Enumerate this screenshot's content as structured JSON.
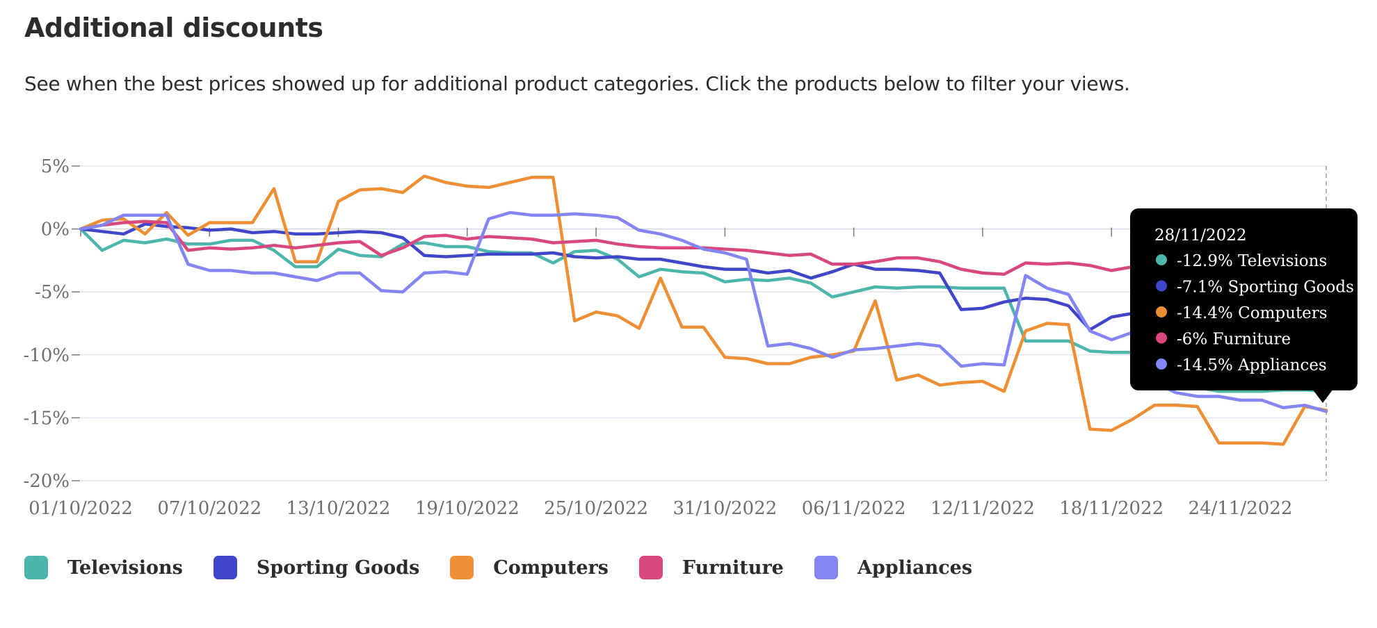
{
  "header": {
    "title": "Additional discounts",
    "subtitle": "See when the best prices showed up for additional product categories. Click the products below to filter your views."
  },
  "tooltip": {
    "date": "28/11/2022",
    "items": [
      {
        "text": "-12.9% Televisions",
        "color": "#4db6ac"
      },
      {
        "text": "-7.1% Sporting Goods",
        "color": "#4046c9"
      },
      {
        "text": "-14.4% Computers",
        "color": "#ef8f35"
      },
      {
        "text": "-6% Furniture",
        "color": "#d8487f"
      },
      {
        "text": "-14.5% Appliances",
        "color": "#8285f2"
      }
    ]
  },
  "chart_data": {
    "type": "line",
    "x": [
      "01/10/2022",
      "02/10/2022",
      "03/10/2022",
      "04/10/2022",
      "05/10/2022",
      "06/10/2022",
      "07/10/2022",
      "08/10/2022",
      "09/10/2022",
      "10/10/2022",
      "11/10/2022",
      "12/10/2022",
      "13/10/2022",
      "14/10/2022",
      "15/10/2022",
      "16/10/2022",
      "17/10/2022",
      "18/10/2022",
      "19/10/2022",
      "20/10/2022",
      "21/10/2022",
      "22/10/2022",
      "23/10/2022",
      "24/10/2022",
      "25/10/2022",
      "26/10/2022",
      "27/10/2022",
      "28/10/2022",
      "29/10/2022",
      "30/10/2022",
      "31/10/2022",
      "01/11/2022",
      "02/11/2022",
      "03/11/2022",
      "04/11/2022",
      "05/11/2022",
      "06/11/2022",
      "07/11/2022",
      "08/11/2022",
      "09/11/2022",
      "10/11/2022",
      "11/11/2022",
      "12/11/2022",
      "13/11/2022",
      "14/11/2022",
      "15/11/2022",
      "16/11/2022",
      "17/11/2022",
      "18/11/2022",
      "19/11/2022",
      "20/11/2022",
      "21/11/2022",
      "22/11/2022",
      "23/11/2022",
      "24/11/2022",
      "25/11/2022",
      "26/11/2022",
      "27/11/2022",
      "28/11/2022"
    ],
    "x_ticks": [
      "01/10/2022",
      "07/10/2022",
      "13/10/2022",
      "19/10/2022",
      "25/10/2022",
      "31/10/2022",
      "06/11/2022",
      "12/11/2022",
      "18/11/2022",
      "24/11/2022"
    ],
    "y_ticks": [
      5,
      0,
      -5,
      -10,
      -15,
      -20
    ],
    "y_tick_labels": [
      "5%",
      "0%",
      "-5%",
      "-10%",
      "-15%",
      "-20%"
    ],
    "ylim": [
      -20,
      5
    ],
    "grid": true,
    "legend_position": "bottom",
    "series": [
      {
        "name": "Televisions",
        "color": "#4db6ac",
        "values": [
          0,
          -1.7,
          -0.9,
          -1.1,
          -0.8,
          -1.2,
          -1.2,
          -0.9,
          -0.9,
          -1.7,
          -3.0,
          -3.0,
          -1.6,
          -2.1,
          -2.2,
          -1.2,
          -1.1,
          -1.4,
          -1.4,
          -1.8,
          -1.9,
          -1.9,
          -2.7,
          -1.8,
          -1.7,
          -2.4,
          -3.8,
          -3.2,
          -3.4,
          -3.5,
          -4.2,
          -4.0,
          -4.1,
          -3.9,
          -4.3,
          -5.4,
          -5.0,
          -4.6,
          -4.7,
          -4.6,
          -4.6,
          -4.7,
          -4.7,
          -4.7,
          -8.9,
          -8.9,
          -8.9,
          -9.7,
          -9.8,
          -9.8,
          -10.2,
          -12.2,
          -12.6,
          -12.9,
          -12.9,
          -12.9,
          -12.8,
          -12.8,
          -12.9
        ]
      },
      {
        "name": "Sporting Goods",
        "color": "#4046c9",
        "values": [
          0,
          -0.2,
          -0.4,
          0.4,
          0.2,
          0.1,
          -0.1,
          0,
          -0.3,
          -0.2,
          -0.4,
          -0.4,
          -0.3,
          -0.2,
          -0.3,
          -0.7,
          -2.1,
          -2.2,
          -2.1,
          -2.0,
          -2.0,
          -2.0,
          -1.9,
          -2.2,
          -2.3,
          -2.2,
          -2.4,
          -2.4,
          -2.7,
          -3.0,
          -3.2,
          -3.2,
          -3.5,
          -3.3,
          -3.9,
          -3.4,
          -2.8,
          -3.2,
          -3.2,
          -3.3,
          -3.5,
          -6.4,
          -6.3,
          -5.8,
          -5.5,
          -5.6,
          -6.1,
          -8.0,
          -7.0,
          -6.7,
          -6.9,
          -7.0,
          -7.1,
          -7.1,
          -7.1,
          -7.1,
          -7.1,
          -7.1,
          -7.1
        ]
      },
      {
        "name": "Computers",
        "color": "#ef8f35",
        "values": [
          0,
          0.7,
          0.8,
          -0.4,
          1.3,
          -0.5,
          0.5,
          0.5,
          0.5,
          3.2,
          -2.6,
          -2.6,
          2.2,
          3.1,
          3.2,
          2.9,
          4.2,
          3.7,
          3.4,
          3.3,
          3.7,
          4.1,
          4.1,
          -7.3,
          -6.6,
          -6.9,
          -7.9,
          -3.9,
          -7.8,
          -7.8,
          -10.2,
          -10.3,
          -10.7,
          -10.7,
          -10.2,
          -10.0,
          -9.7,
          -5.7,
          -12.0,
          -11.6,
          -12.4,
          -12.2,
          -12.1,
          -12.9,
          -8.1,
          -7.5,
          -7.6,
          -15.9,
          -16.0,
          -15.1,
          -14.0,
          -14.0,
          -14.1,
          -17.0,
          -17.0,
          -17.0,
          -17.1,
          -14.1,
          -14.4
        ]
      },
      {
        "name": "Furniture",
        "color": "#d8487f",
        "values": [
          0,
          0.3,
          0.5,
          0.6,
          0.5,
          -1.7,
          -1.5,
          -1.6,
          -1.5,
          -1.3,
          -1.5,
          -1.3,
          -1.1,
          -1.0,
          -2.1,
          -1.5,
          -0.6,
          -0.5,
          -0.8,
          -0.6,
          -0.7,
          -0.8,
          -1.1,
          -1.0,
          -0.9,
          -1.2,
          -1.4,
          -1.5,
          -1.5,
          -1.5,
          -1.6,
          -1.7,
          -1.9,
          -2.1,
          -2.0,
          -2.8,
          -2.8,
          -2.6,
          -2.3,
          -2.3,
          -2.6,
          -3.2,
          -3.5,
          -3.6,
          -2.7,
          -2.8,
          -2.7,
          -2.9,
          -3.3,
          -3.0,
          -6.0,
          -6.0,
          -6.0,
          -6.0,
          -6.0,
          -6.0,
          -6.0,
          -6.0,
          -6.0
        ]
      },
      {
        "name": "Appliances",
        "color": "#8285f2",
        "values": [
          0,
          0.3,
          1.1,
          1.1,
          1.1,
          -2.8,
          -3.3,
          -3.3,
          -3.5,
          -3.5,
          -3.8,
          -4.1,
          -3.5,
          -3.5,
          -4.9,
          -5.0,
          -3.5,
          -3.4,
          -3.6,
          0.8,
          1.3,
          1.1,
          1.1,
          1.2,
          1.1,
          0.9,
          -0.1,
          -0.4,
          -0.9,
          -1.6,
          -1.9,
          -2.4,
          -9.3,
          -9.1,
          -9.5,
          -10.2,
          -9.6,
          -9.5,
          -9.3,
          -9.1,
          -9.3,
          -10.9,
          -10.7,
          -10.8,
          -3.7,
          -4.7,
          -5.2,
          -8.1,
          -8.8,
          -8.2,
          -12.2,
          -13.0,
          -13.3,
          -13.3,
          -13.6,
          -13.6,
          -14.2,
          -14.0,
          -14.5
        ]
      }
    ]
  }
}
